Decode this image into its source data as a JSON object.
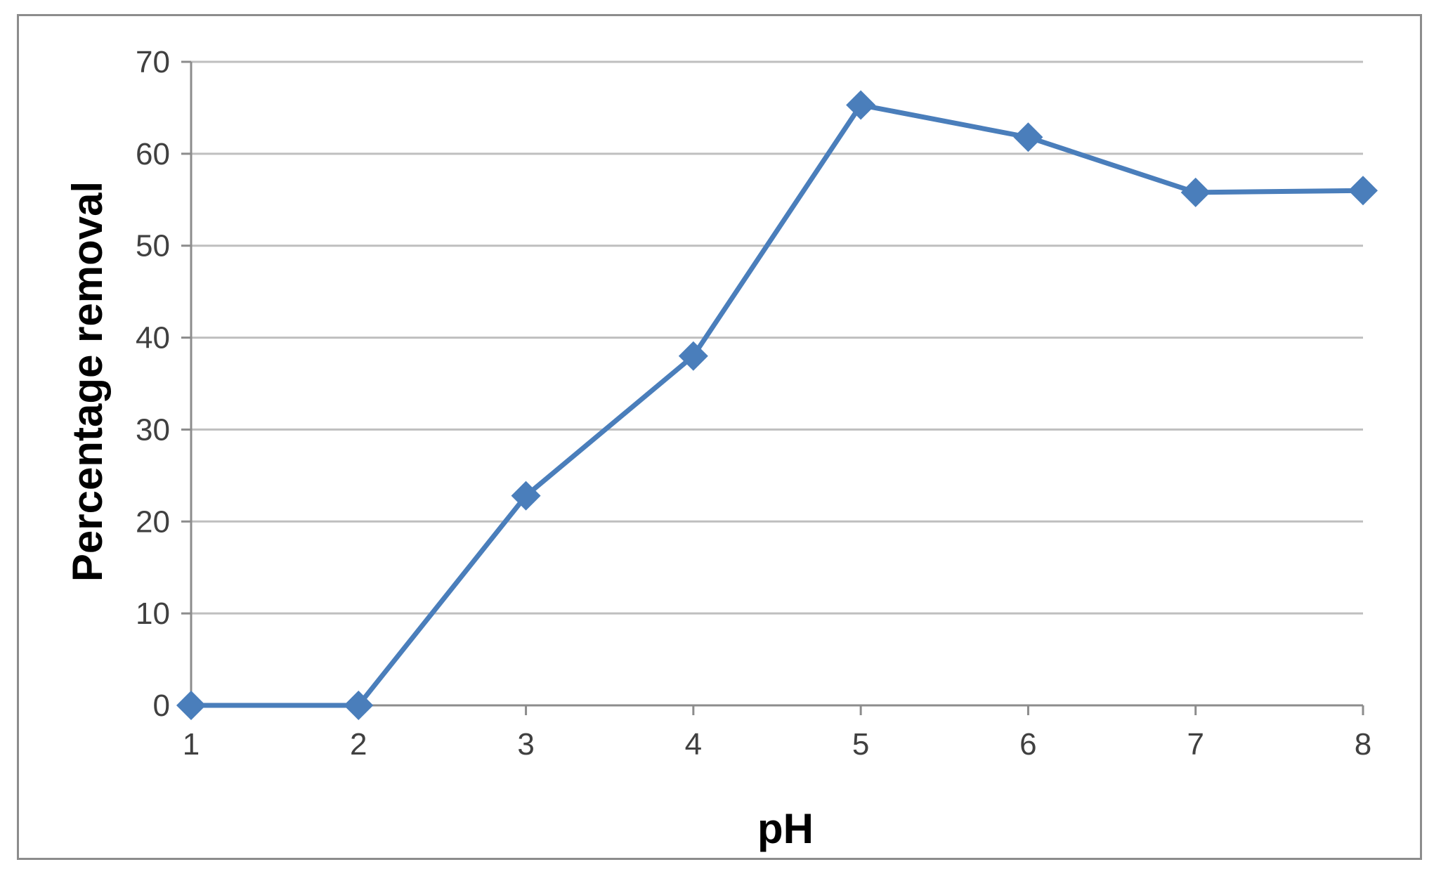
{
  "chart_data": {
    "type": "line",
    "title": "",
    "xlabel": "pH",
    "ylabel": "Percentage removal",
    "x": [
      1,
      2,
      3,
      4,
      5,
      6,
      7,
      8
    ],
    "series": [
      {
        "values": [
          0,
          0,
          22.8,
          38,
          65.3,
          61.8,
          55.8,
          56
        ],
        "color": "#4a7ebb",
        "marker": "diamond"
      }
    ],
    "xticks": [
      "1",
      "2",
      "3",
      "4",
      "5",
      "6",
      "7",
      "8"
    ],
    "yticks": [
      "0",
      "10",
      "20",
      "30",
      "40",
      "50",
      "60",
      "70"
    ],
    "ylim": [
      0,
      70
    ],
    "xlim": [
      1,
      8
    ],
    "grid": true,
    "legend": "none",
    "colors": {
      "series": "#4a7ebb",
      "grid": "#bfbfbf",
      "axis": "#8c8c8c",
      "frame": "#8c8c8c"
    }
  }
}
